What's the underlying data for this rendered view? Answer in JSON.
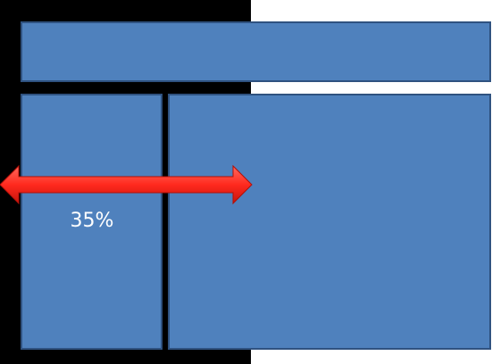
{
  "colors": {
    "backdrop": "#000000",
    "canvas": "#ffffff",
    "panel_fill": "#4f81bd",
    "panel_border": "#2f5280",
    "arrow_light": "#ff4a3d",
    "arrow_dark": "#c8140c"
  },
  "panels": {
    "header": "header-panel",
    "left": "left-sidebar-panel",
    "right": "main-content-panel"
  },
  "arrow": {
    "icon": "double-headed-arrow-icon",
    "label": "35%",
    "fraction": 0.35
  }
}
